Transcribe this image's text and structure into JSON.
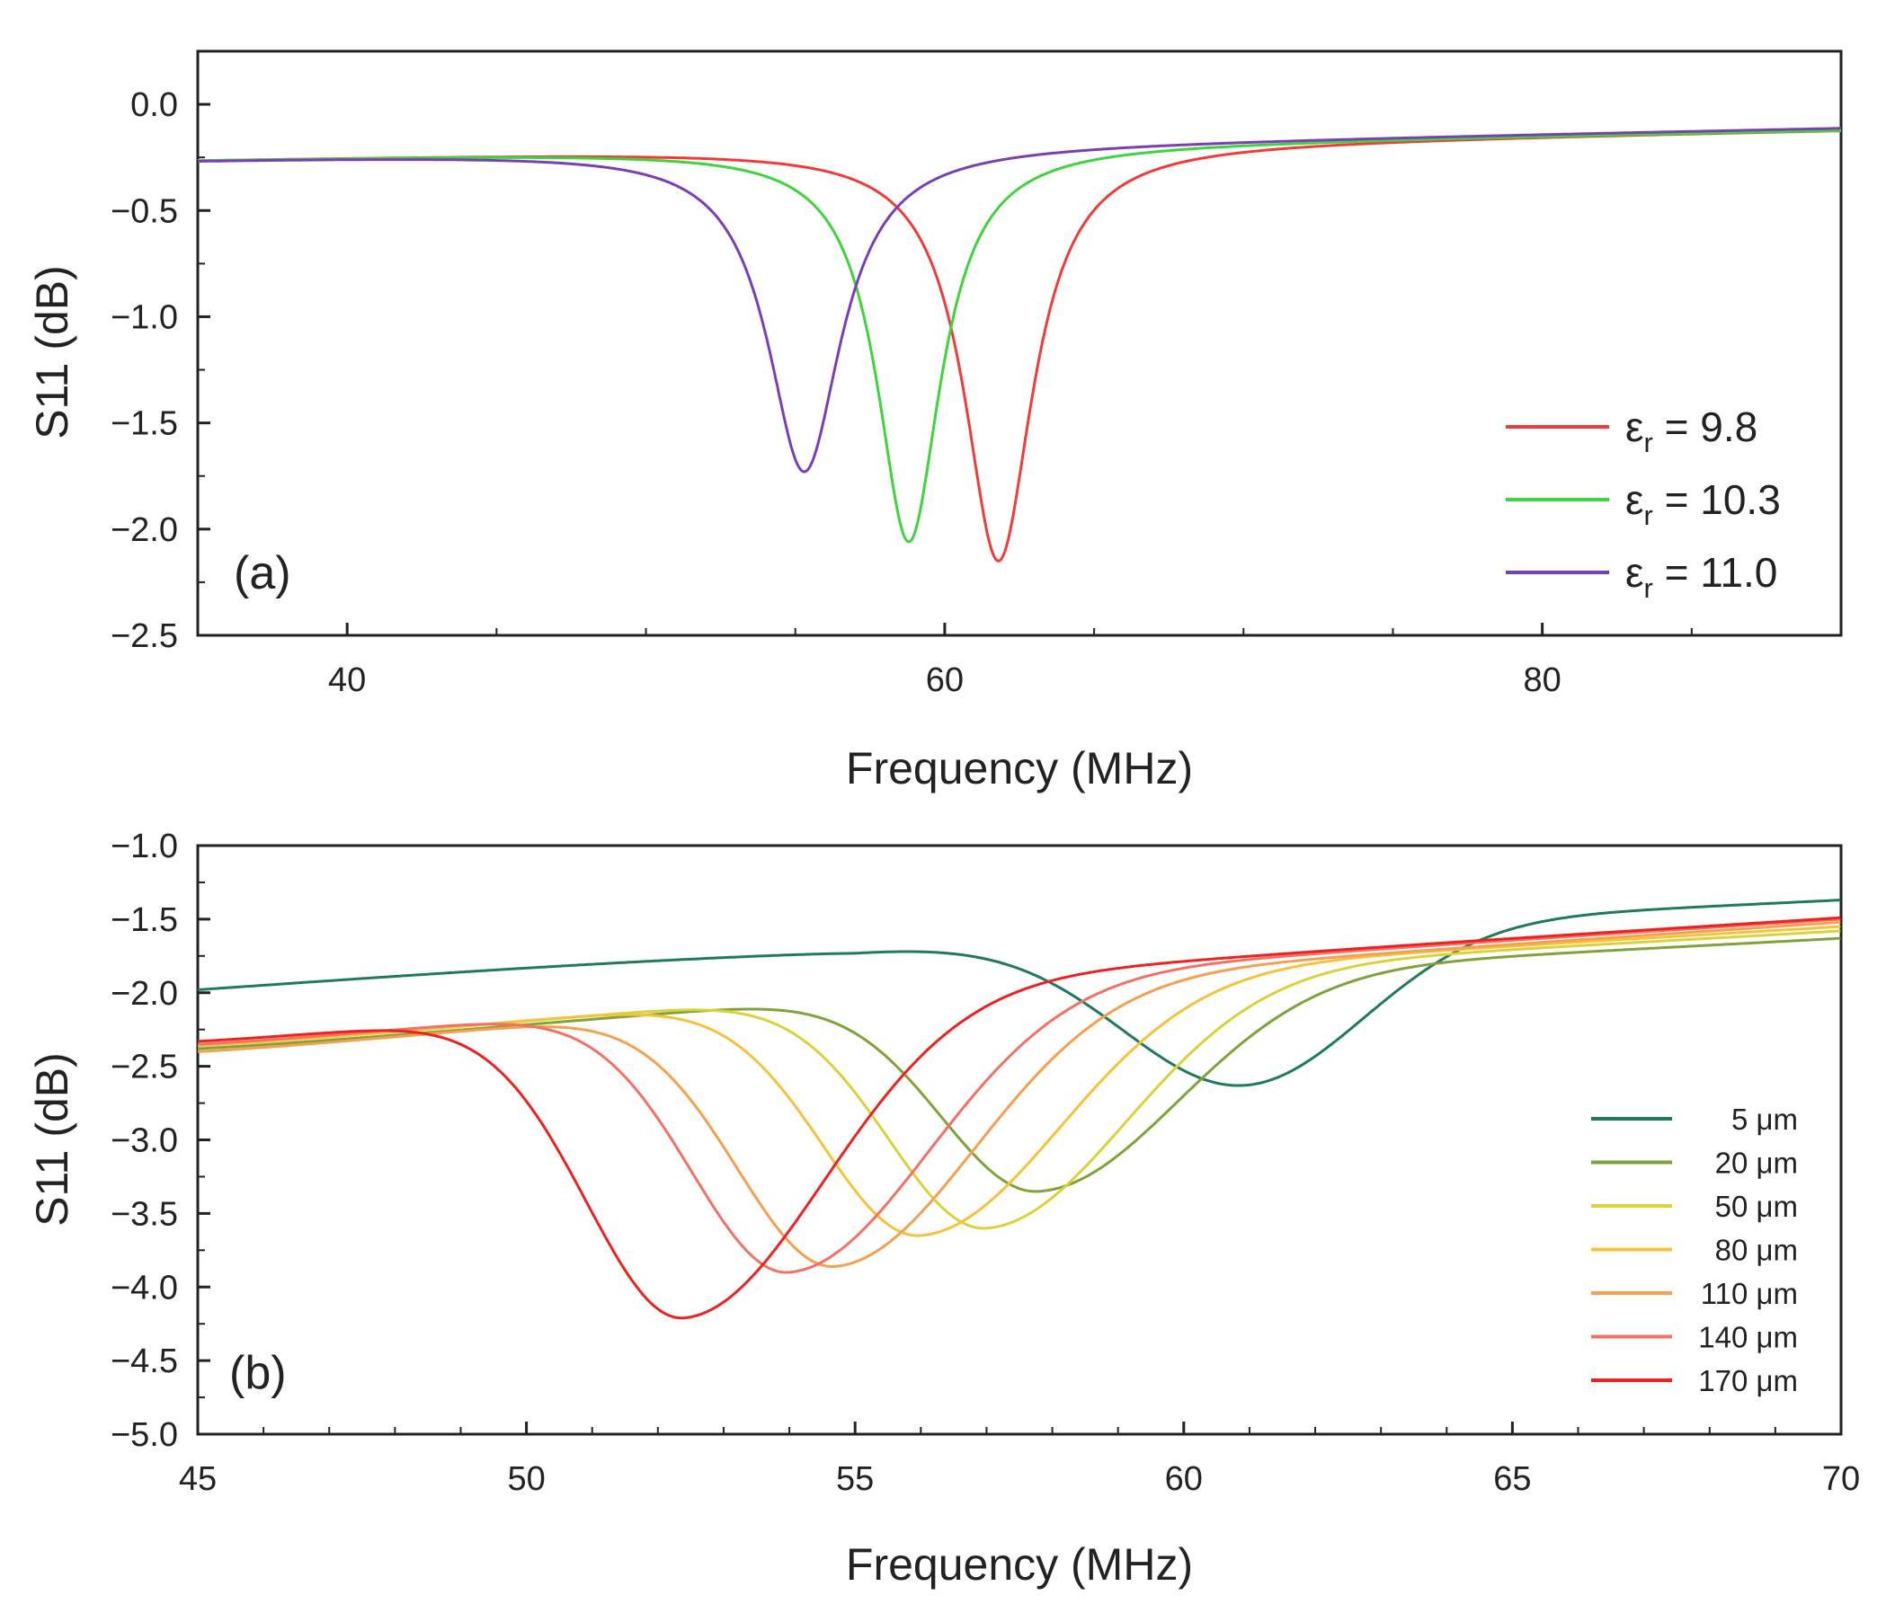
{
  "chart_data": [
    {
      "type": "line",
      "panel_label": "(a)",
      "xlabel": "Frequency (MHz)",
      "ylabel": "S11 (dB)",
      "xlim": [
        35,
        90
      ],
      "ylim": [
        -2.5,
        0.25
      ],
      "xticks": [
        40,
        60,
        80
      ],
      "xtick_labels": [
        "40",
        "60",
        "80"
      ],
      "yticks": [
        0.0,
        -0.5,
        -1.0,
        -1.5,
        -2.0,
        -2.5
      ],
      "ytick_labels": [
        "0.0",
        "−0.5",
        "−1.0",
        "−1.5",
        "−2.0",
        "−2.5"
      ],
      "legend_position": "bottom-right",
      "series": [
        {
          "name": "εr = 9.8",
          "symbol": "ε",
          "sub": "r",
          "value_label": " = 9.8",
          "color": "#f23a3a",
          "resonance_mhz": 61.8,
          "min_db": -2.15,
          "bandwidth_mhz": 1.4,
          "baseline_start_db": -0.26,
          "baseline_end_db": -0.12
        },
        {
          "name": "εr = 10.3",
          "symbol": "ε",
          "sub": "r",
          "value_label": " = 10.3",
          "color": "#3ed43e",
          "resonance_mhz": 58.8,
          "min_db": -2.06,
          "bandwidth_mhz": 1.3,
          "baseline_start_db": -0.26,
          "baseline_end_db": -0.12
        },
        {
          "name": "εr = 11.0",
          "symbol": "ε",
          "sub": "r",
          "value_label": " = 11.0",
          "color": "#7a3fb5",
          "resonance_mhz": 55.3,
          "min_db": -1.73,
          "bandwidth_mhz": 1.5,
          "baseline_start_db": -0.26,
          "baseline_end_db": -0.11
        }
      ]
    },
    {
      "type": "line",
      "panel_label": "(b)",
      "xlabel": "Frequency (MHz)",
      "ylabel": "S11 (dB)",
      "xlim": [
        45,
        70
      ],
      "ylim": [
        -5.0,
        -1.0
      ],
      "xticks": [
        45,
        50,
        55,
        60,
        65,
        70
      ],
      "xtick_labels": [
        "45",
        "50",
        "55",
        "60",
        "65",
        "70"
      ],
      "yticks": [
        -1.0,
        -1.5,
        -2.0,
        -2.5,
        -3.0,
        -3.5,
        -4.0,
        -4.5,
        -5.0
      ],
      "ytick_labels": [
        "−1.0",
        "−1.5",
        "−2.0",
        "−2.5",
        "−3.0",
        "−3.5",
        "−4.0",
        "−4.5",
        "−5.0"
      ],
      "legend_position": "bottom-right",
      "series": [
        {
          "name": "5 μm",
          "color": "#1f7a5a",
          "resonance_mhz": 60.9,
          "min_db": -2.63,
          "baseline_start_db": -1.98,
          "baseline_peak_db": -1.69,
          "baseline_end_db": -1.37
        },
        {
          "name": "20 μm",
          "color": "#7fa33a",
          "resonance_mhz": 57.8,
          "min_db": -3.35,
          "baseline_start_db": -2.38,
          "baseline_end_db": -1.63
        },
        {
          "name": "50 μm",
          "color": "#d9d23a",
          "resonance_mhz": 57.0,
          "min_db": -3.6,
          "baseline_start_db": -2.36,
          "baseline_end_db": -1.58
        },
        {
          "name": "80 μm",
          "color": "#f5c33b",
          "resonance_mhz": 56.0,
          "min_db": -3.65,
          "baseline_start_db": -2.36,
          "baseline_end_db": -1.55
        },
        {
          "name": "110 μm",
          "color": "#f4a050",
          "resonance_mhz": 54.7,
          "min_db": -3.86,
          "baseline_start_db": -2.4,
          "baseline_end_db": -1.52
        },
        {
          "name": "140 μm",
          "color": "#f37064",
          "resonance_mhz": 54.0,
          "min_db": -3.9,
          "baseline_start_db": -2.35,
          "baseline_end_db": -1.5
        },
        {
          "name": "170 μm",
          "color": "#f02020",
          "resonance_mhz": 52.4,
          "min_db": -4.21,
          "baseline_start_db": -2.33,
          "baseline_end_db": -1.49
        }
      ]
    }
  ]
}
